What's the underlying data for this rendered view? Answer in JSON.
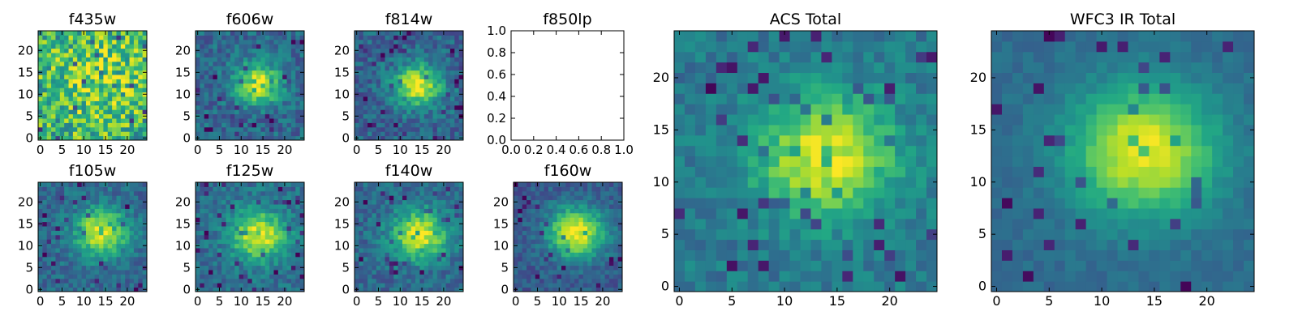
{
  "colors": {
    "colormap": "viridis",
    "background": "#ffffff",
    "axis": "#000000"
  },
  "chart_data": [
    {
      "type": "heatmap",
      "title": "f435w",
      "xlim": [
        -0.5,
        24.5
      ],
      "ylim": [
        -0.5,
        24.5
      ],
      "xticks": [
        0,
        5,
        10,
        15,
        20
      ],
      "yticks": [
        0,
        5,
        10,
        15,
        20
      ],
      "xtick_labels": [
        "0",
        "5",
        "10",
        "15",
        "20"
      ],
      "ytick_labels": [
        "0",
        "5",
        "10",
        "15",
        "20"
      ],
      "grid": [
        25,
        25
      ],
      "center": [
        14,
        13
      ],
      "peak": 0.8,
      "sigma": 9.0,
      "base": 0.62,
      "noise": 0.28,
      "floor": 0.05
    },
    {
      "type": "heatmap",
      "title": "f606w",
      "xlim": [
        -0.5,
        24.5
      ],
      "ylim": [
        -0.5,
        24.5
      ],
      "xticks": [
        0,
        5,
        10,
        15,
        20
      ],
      "yticks": [
        0,
        5,
        10,
        15,
        20
      ],
      "xtick_labels": [
        "0",
        "5",
        "10",
        "15",
        "20"
      ],
      "ytick_labels": [
        "0",
        "5",
        "10",
        "15",
        "20"
      ],
      "grid": [
        25,
        25
      ],
      "center": [
        14,
        12.5
      ],
      "peak": 0.95,
      "sigma": 3.6,
      "base": 0.34,
      "noise": 0.14,
      "floor": 0.05
    },
    {
      "type": "heatmap",
      "title": "f814w",
      "xlim": [
        -0.5,
        24.5
      ],
      "ylim": [
        -0.5,
        24.5
      ],
      "xticks": [
        0,
        5,
        10,
        15,
        20
      ],
      "yticks": [
        0,
        5,
        10,
        15,
        20
      ],
      "xtick_labels": [
        "0",
        "5",
        "10",
        "15",
        "20"
      ],
      "ytick_labels": [
        "0",
        "5",
        "10",
        "15",
        "20"
      ],
      "grid": [
        25,
        25
      ],
      "center": [
        14,
        12
      ],
      "peak": 0.95,
      "sigma": 3.8,
      "base": 0.32,
      "noise": 0.14,
      "floor": 0.05
    },
    {
      "type": "empty",
      "title": "f850lp",
      "xlim": [
        0,
        1
      ],
      "ylim": [
        0,
        1
      ],
      "xticks": [
        0,
        0.2,
        0.4,
        0.6,
        0.8,
        1.0
      ],
      "yticks": [
        0,
        0.2,
        0.4,
        0.6,
        0.8,
        1.0
      ],
      "xtick_labels": [
        "0.0",
        "0.2",
        "0.4",
        "0.6",
        "0.8",
        "1.0"
      ],
      "ytick_labels": [
        "0.0",
        "0.2",
        "0.4",
        "0.6",
        "0.8",
        "1.0"
      ]
    },
    {
      "type": "heatmap",
      "title": "f105w",
      "xlim": [
        -0.5,
        24.5
      ],
      "ylim": [
        -0.5,
        24.5
      ],
      "xticks": [
        0,
        5,
        10,
        15,
        20
      ],
      "yticks": [
        0,
        5,
        10,
        15,
        20
      ],
      "xtick_labels": [
        "0",
        "5",
        "10",
        "15",
        "20"
      ],
      "ytick_labels": [
        "0",
        "5",
        "10",
        "15",
        "20"
      ],
      "grid": [
        25,
        25
      ],
      "center": [
        14,
        13
      ],
      "peak": 0.97,
      "sigma": 4.2,
      "base": 0.34,
      "noise": 0.12,
      "floor": 0.05
    },
    {
      "type": "heatmap",
      "title": "f125w",
      "xlim": [
        -0.5,
        24.5
      ],
      "ylim": [
        -0.5,
        24.5
      ],
      "xticks": [
        0,
        5,
        10,
        15,
        20
      ],
      "yticks": [
        0,
        5,
        10,
        15,
        20
      ],
      "xtick_labels": [
        "0",
        "5",
        "10",
        "15",
        "20"
      ],
      "ytick_labels": [
        "0",
        "5",
        "10",
        "15",
        "20"
      ],
      "grid": [
        25,
        25
      ],
      "center": [
        14,
        12.5
      ],
      "peak": 0.97,
      "sigma": 4.4,
      "base": 0.36,
      "noise": 0.12,
      "floor": 0.05
    },
    {
      "type": "heatmap",
      "title": "f140w",
      "xlim": [
        -0.5,
        24.5
      ],
      "ylim": [
        -0.5,
        24.5
      ],
      "xticks": [
        0,
        5,
        10,
        15,
        20
      ],
      "yticks": [
        0,
        5,
        10,
        15,
        20
      ],
      "xtick_labels": [
        "0",
        "5",
        "10",
        "15",
        "20"
      ],
      "ytick_labels": [
        "0",
        "5",
        "10",
        "15",
        "20"
      ],
      "grid": [
        25,
        25
      ],
      "center": [
        14.5,
        12.5
      ],
      "peak": 0.97,
      "sigma": 4.4,
      "base": 0.34,
      "noise": 0.12,
      "floor": 0.05
    },
    {
      "type": "heatmap",
      "title": "f160w",
      "xlim": [
        -0.5,
        24.5
      ],
      "ylim": [
        -0.5,
        24.5
      ],
      "xticks": [
        0,
        5,
        10,
        15,
        20
      ],
      "yticks": [
        0,
        5,
        10,
        15,
        20
      ],
      "xtick_labels": [
        "0",
        "5",
        "10",
        "15",
        "20"
      ],
      "ytick_labels": [
        "0",
        "5",
        "10",
        "15",
        "20"
      ],
      "grid": [
        25,
        25
      ],
      "center": [
        14,
        13
      ],
      "peak": 0.98,
      "sigma": 4.6,
      "base": 0.28,
      "noise": 0.1,
      "floor": 0.02
    },
    {
      "type": "heatmap",
      "title": "ACS Total",
      "xlim": [
        -0.5,
        24.5
      ],
      "ylim": [
        -0.5,
        24.5
      ],
      "xticks": [
        0,
        5,
        10,
        15,
        20
      ],
      "yticks": [
        0,
        5,
        10,
        15,
        20
      ],
      "xtick_labels": [
        "0",
        "5",
        "10",
        "15",
        "20"
      ],
      "ytick_labels": [
        "0",
        "5",
        "10",
        "15",
        "20"
      ],
      "grid": [
        25,
        25
      ],
      "center": [
        14,
        12.5
      ],
      "peak": 0.97,
      "sigma": 4.6,
      "base": 0.4,
      "noise": 0.1,
      "floor": 0.08
    },
    {
      "type": "heatmap",
      "title": "WFC3 IR Total",
      "xlim": [
        -0.5,
        24.5
      ],
      "ylim": [
        -0.5,
        24.5
      ],
      "xticks": [
        0,
        5,
        10,
        15,
        20
      ],
      "yticks": [
        0,
        5,
        10,
        15,
        20
      ],
      "xtick_labels": [
        "0",
        "5",
        "10",
        "15",
        "20"
      ],
      "ytick_labels": [
        "0",
        "5",
        "10",
        "15",
        "20"
      ],
      "grid": [
        25,
        25
      ],
      "center": [
        14,
        13
      ],
      "peak": 0.98,
      "sigma": 4.8,
      "base": 0.35,
      "noise": 0.05,
      "floor": 0.05
    }
  ]
}
